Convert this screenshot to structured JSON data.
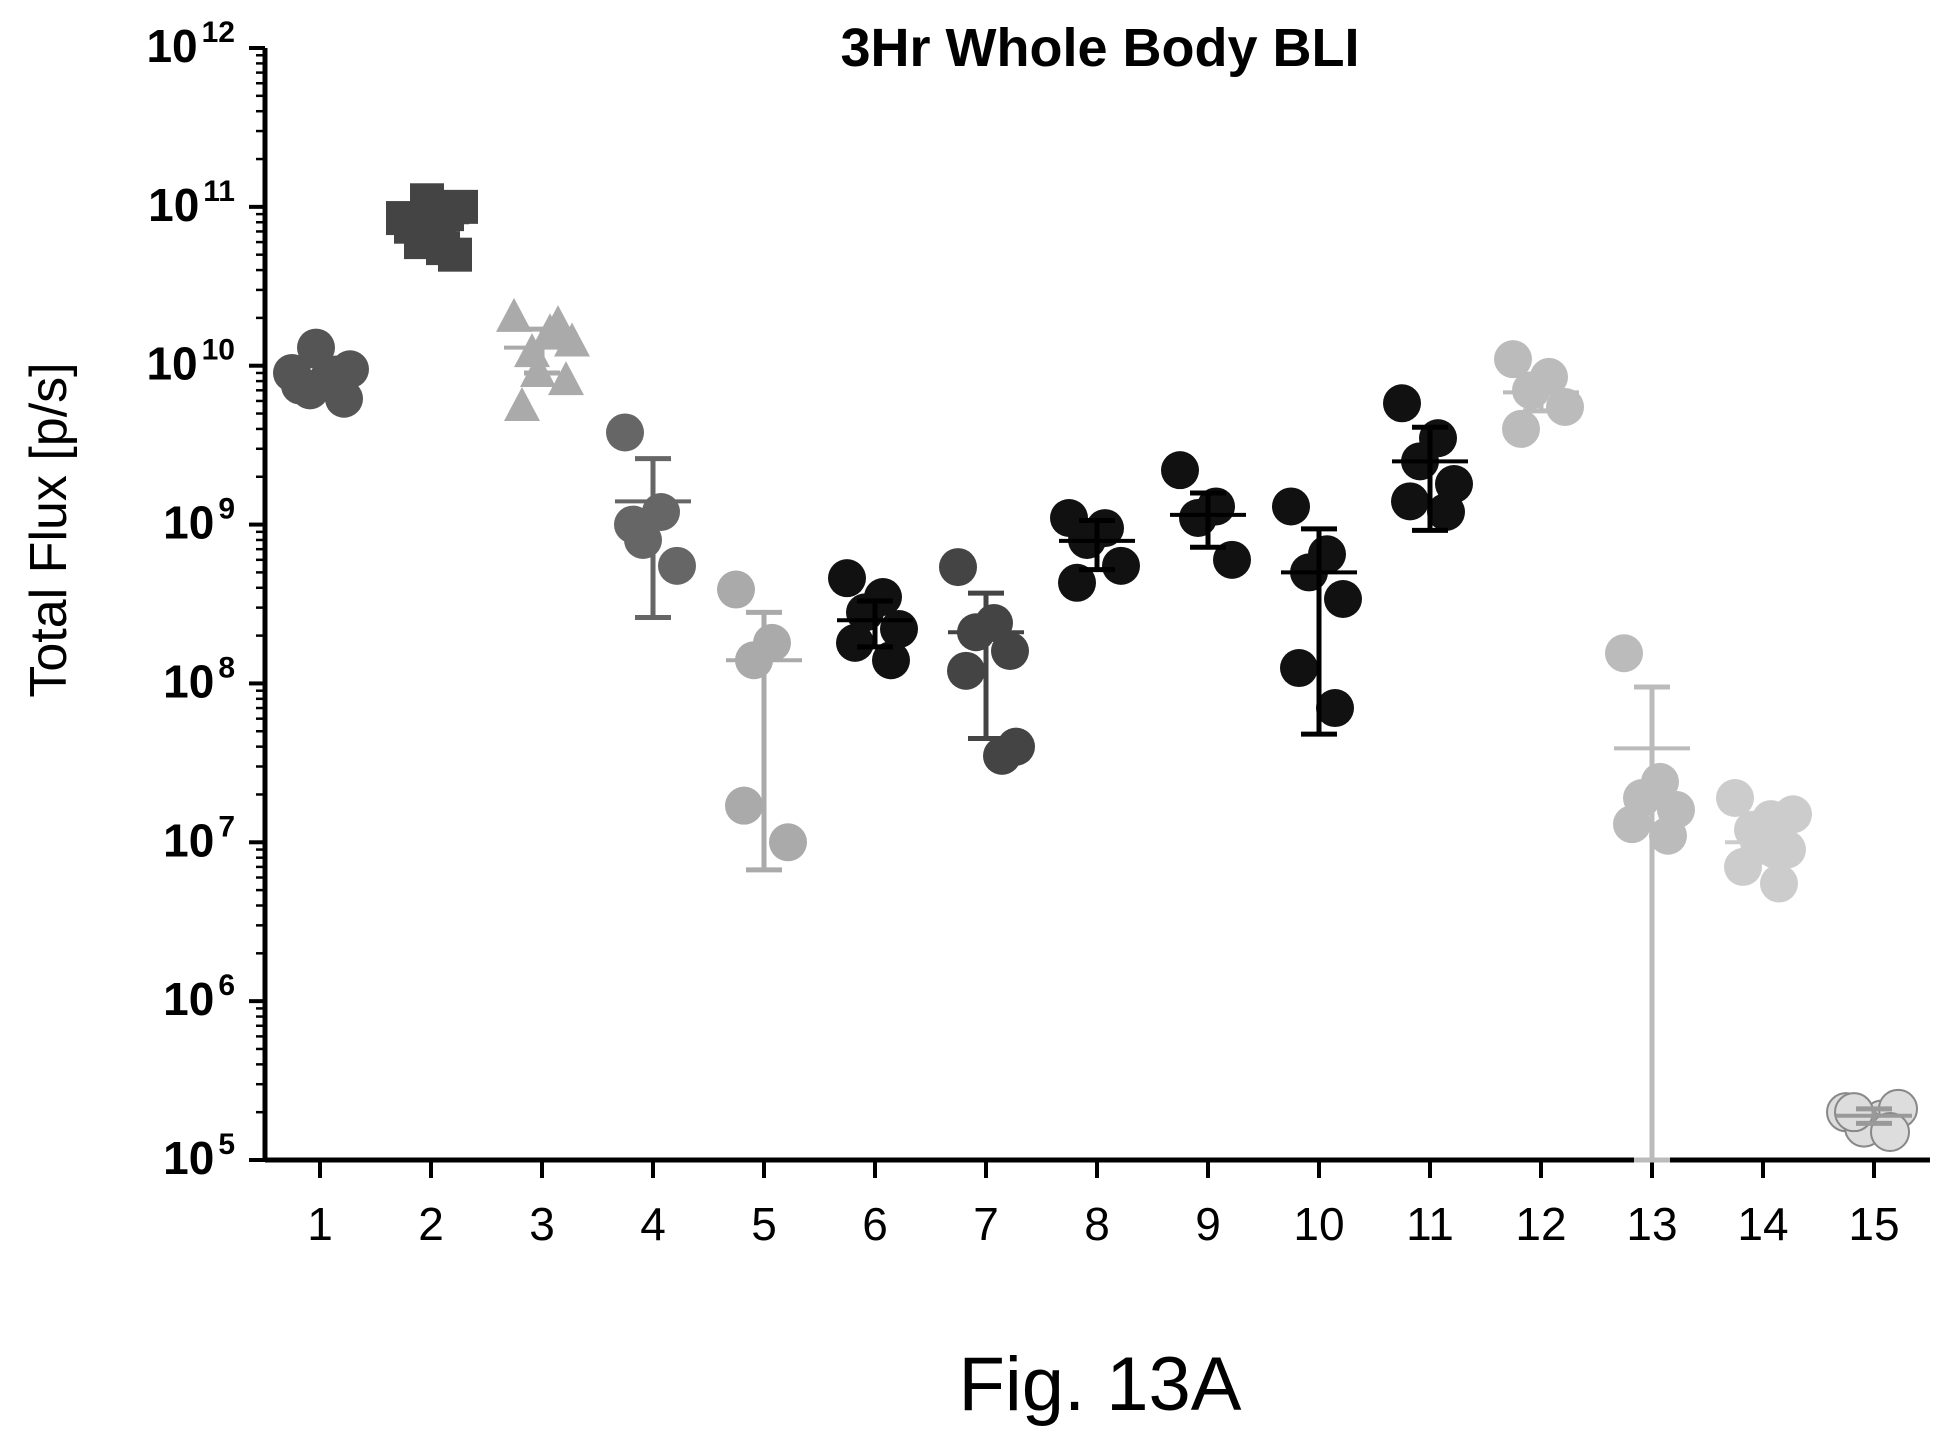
{
  "figure": {
    "caption": "Fig. 13A"
  },
  "chart_data": {
    "type": "scatter",
    "title": "3Hr Whole Body BLI",
    "xlabel": "",
    "ylabel": "Total Flux [p/s]",
    "yscale": "log",
    "ylim": [
      100000,
      1000000000000
    ],
    "ytick_base": "10",
    "yticks": [
      {
        "value": 100000,
        "exp": "5"
      },
      {
        "value": 1000000,
        "exp": "6"
      },
      {
        "value": 10000000,
        "exp": "7"
      },
      {
        "value": 100000000,
        "exp": "8"
      },
      {
        "value": 1000000000,
        "exp": "9"
      },
      {
        "value": 10000000000,
        "exp": "10"
      },
      {
        "value": 100000000000,
        "exp": "11"
      },
      {
        "value": 1000000000000,
        "exp": "12"
      }
    ],
    "categories": [
      "1",
      "2",
      "3",
      "4",
      "5",
      "6",
      "7",
      "8",
      "9",
      "10",
      "11",
      "12",
      "13",
      "14",
      "15"
    ],
    "grid": false,
    "series": [
      {
        "category": "1",
        "color": "#555555",
        "marker": "circle",
        "mean": 8500000000,
        "error": [
          7500000000,
          10000000000
        ],
        "points": [
          9000000000,
          8200000000,
          7000000000,
          6200000000,
          7500000000,
          8800000000,
          9500000000,
          13000000000
        ]
      },
      {
        "category": "2",
        "color": "#444444",
        "marker": "square",
        "mean": 80000000000,
        "error": [
          65000000000,
          95000000000
        ],
        "points": [
          85000000000,
          70000000000,
          60000000000,
          50000000000,
          75000000000,
          90000000000,
          100000000000,
          110000000000,
          55000000000
        ]
      },
      {
        "category": "3",
        "color": "#aaaaaa",
        "marker": "triangle",
        "mean": 13000000000,
        "error": [
          9000000000,
          17000000000
        ],
        "points": [
          20000000000,
          16000000000,
          12000000000,
          8000000000,
          5500000000,
          18000000000,
          14000000000,
          9000000000
        ]
      },
      {
        "category": "4",
        "color": "#666666",
        "marker": "circle",
        "mean": 1400000000,
        "error": [
          260000000,
          2600000000
        ],
        "points": [
          3800000000,
          1200000000,
          800000000,
          550000000,
          1000000000
        ]
      },
      {
        "category": "5",
        "color": "#aaaaaa",
        "marker": "circle",
        "mean": 140000000,
        "error": [
          6700000,
          280000000
        ],
        "points": [
          390000000,
          180000000,
          140000000,
          10000000,
          17000000
        ]
      },
      {
        "category": "6",
        "color": "#111111",
        "marker": "circle",
        "mean": 250000000,
        "error": [
          170000000,
          330000000
        ],
        "points": [
          460000000,
          350000000,
          280000000,
          220000000,
          180000000,
          140000000
        ]
      },
      {
        "category": "7",
        "color": "#444444",
        "marker": "circle",
        "mean": 210000000,
        "error": [
          45000000,
          370000000
        ],
        "points": [
          540000000,
          240000000,
          210000000,
          160000000,
          120000000,
          35000000,
          40000000
        ]
      },
      {
        "category": "8",
        "color": "#111111",
        "marker": "circle",
        "mean": 790000000,
        "error": [
          520000000,
          1060000000
        ],
        "points": [
          1100000000,
          950000000,
          800000000,
          550000000,
          430000000
        ]
      },
      {
        "category": "9",
        "color": "#111111",
        "marker": "circle",
        "mean": 1150000000,
        "error": [
          720000000,
          1580000000
        ],
        "points": [
          2200000000,
          1300000000,
          1100000000,
          600000000
        ]
      },
      {
        "category": "10",
        "color": "#111111",
        "marker": "circle",
        "mean": 500000000,
        "error": [
          48000000,
          940000000
        ],
        "points": [
          1300000000,
          650000000,
          500000000,
          340000000,
          125000000,
          70000000
        ]
      },
      {
        "category": "11",
        "color": "#111111",
        "marker": "circle",
        "mean": 2500000000,
        "error": [
          920000000,
          4100000000
        ],
        "points": [
          5800000000,
          3500000000,
          2500000000,
          1800000000,
          1400000000,
          1200000000
        ]
      },
      {
        "category": "12",
        "color": "#bbbbbb",
        "marker": "circle",
        "mean": 6800000000,
        "error": [
          5200000000,
          8400000000
        ],
        "points": [
          11000000000,
          8500000000,
          7000000000,
          5500000000,
          4000000000
        ]
      },
      {
        "category": "13",
        "color": "#bbbbbb",
        "marker": "circle",
        "mean": 39000000,
        "error": [
          100000,
          95000000
        ],
        "points": [
          155000000,
          24000000,
          19000000,
          16000000,
          13000000,
          11000000
        ]
      },
      {
        "category": "14",
        "color": "#cccccc",
        "marker": "circle",
        "mean": 10000000,
        "error": [
          7500000,
          12500000
        ],
        "points": [
          19000000,
          14000000,
          12000000,
          9000000,
          7000000,
          5500000,
          15000000,
          10000000,
          9000000
        ]
      },
      {
        "category": "15",
        "color": "#dddddd",
        "marker": "circle",
        "mean": 190000,
        "error": [
          170000,
          210000
        ],
        "points": [
          200000,
          180000,
          160000,
          210000,
          200000,
          150000
        ]
      }
    ]
  }
}
